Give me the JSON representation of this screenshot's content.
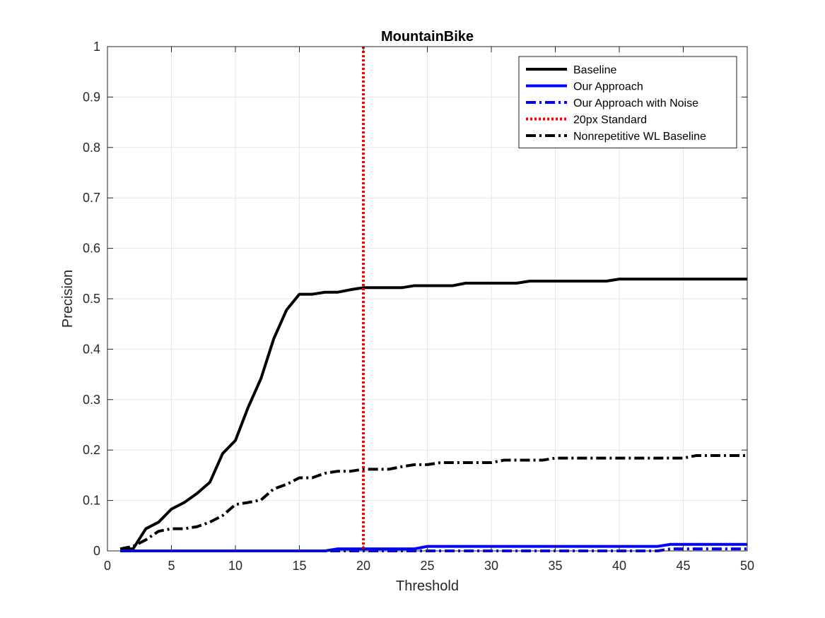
{
  "chart_data": {
    "type": "line",
    "title": "MountainBike",
    "xlabel": "Threshold",
    "ylabel": "Precision",
    "xlim": [
      0,
      50
    ],
    "ylim": [
      0,
      1
    ],
    "xticks": [
      0,
      5,
      10,
      15,
      20,
      25,
      30,
      35,
      40,
      45,
      50
    ],
    "yticks": [
      0,
      0.1,
      0.2,
      0.3,
      0.4,
      0.5,
      0.6,
      0.7,
      0.8,
      0.9,
      1
    ],
    "ytick_labels": [
      "0",
      "0.1",
      "0.2",
      "0.3",
      "0.4",
      "0.5",
      "0.6",
      "0.7",
      "0.8",
      "0.9",
      "1"
    ],
    "grid": true,
    "legend_position": "top-right",
    "x": [
      1,
      2,
      3,
      4,
      5,
      6,
      7,
      8,
      9,
      10,
      11,
      12,
      13,
      14,
      15,
      16,
      17,
      18,
      19,
      20,
      21,
      22,
      23,
      24,
      25,
      26,
      27,
      28,
      29,
      30,
      31,
      32,
      33,
      34,
      35,
      36,
      37,
      38,
      39,
      40,
      41,
      42,
      43,
      44,
      45,
      46,
      47,
      48,
      49,
      50
    ],
    "series": [
      {
        "name": "Baseline",
        "color": "#000000",
        "style": "solid",
        "values": [
          0.004,
          0.004,
          0.044,
          0.057,
          0.083,
          0.096,
          0.114,
          0.136,
          0.193,
          0.219,
          0.285,
          0.342,
          0.421,
          0.478,
          0.509,
          0.509,
          0.513,
          0.513,
          0.518,
          0.522,
          0.522,
          0.522,
          0.522,
          0.526,
          0.526,
          0.526,
          0.526,
          0.531,
          0.531,
          0.531,
          0.531,
          0.531,
          0.535,
          0.535,
          0.535,
          0.535,
          0.535,
          0.535,
          0.535,
          0.539,
          0.539,
          0.539,
          0.539,
          0.539,
          0.539,
          0.539,
          0.539,
          0.539,
          0.539,
          0.539
        ]
      },
      {
        "name": "Our Approach",
        "color": "#0000ff",
        "style": "solid",
        "values": [
          0,
          0,
          0,
          0,
          0,
          0,
          0,
          0,
          0,
          0,
          0,
          0,
          0,
          0,
          0,
          0,
          0,
          0.004,
          0.004,
          0.004,
          0.004,
          0.004,
          0.004,
          0.004,
          0.009,
          0.009,
          0.009,
          0.009,
          0.009,
          0.009,
          0.009,
          0.009,
          0.009,
          0.009,
          0.009,
          0.009,
          0.009,
          0.009,
          0.009,
          0.009,
          0.009,
          0.009,
          0.009,
          0.013,
          0.013,
          0.013,
          0.013,
          0.013,
          0.013,
          0.013
        ]
      },
      {
        "name": "Our Approach with Noise",
        "color": "#0000ff",
        "style": "dashdot",
        "values": [
          0,
          0,
          0,
          0,
          0,
          0,
          0,
          0,
          0,
          0,
          0,
          0,
          0,
          0,
          0,
          0,
          0,
          0,
          0,
          0,
          0,
          0,
          0,
          0,
          0,
          0,
          0,
          0,
          0,
          0,
          0,
          0,
          0,
          0,
          0,
          0,
          0,
          0,
          0,
          0,
          0,
          0,
          0,
          0.004,
          0.004,
          0.004,
          0.004,
          0.004,
          0.004,
          0.004
        ]
      },
      {
        "name": "20px Standard",
        "color": "#ff0000",
        "style": "dotted",
        "vertical_x": 20
      },
      {
        "name": "Nonrepetitive WL Baseline",
        "color": "#000000",
        "style": "dashdot",
        "values": [
          0.004,
          0.009,
          0.022,
          0.039,
          0.044,
          0.044,
          0.048,
          0.057,
          0.07,
          0.092,
          0.096,
          0.101,
          0.123,
          0.132,
          0.145,
          0.145,
          0.154,
          0.158,
          0.158,
          0.162,
          0.162,
          0.162,
          0.167,
          0.171,
          0.171,
          0.175,
          0.175,
          0.175,
          0.175,
          0.175,
          0.18,
          0.18,
          0.18,
          0.18,
          0.184,
          0.184,
          0.184,
          0.184,
          0.184,
          0.184,
          0.184,
          0.184,
          0.184,
          0.184,
          0.184,
          0.189,
          0.189,
          0.189,
          0.189,
          0.189
        ]
      }
    ]
  }
}
